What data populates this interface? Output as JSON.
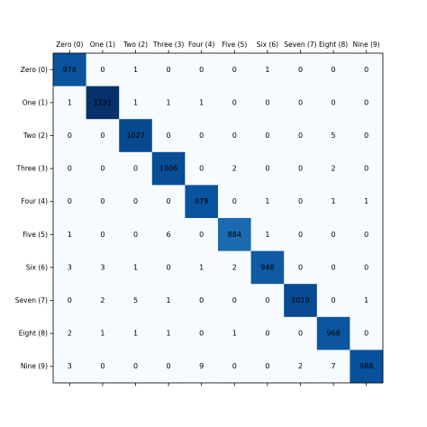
{
  "chart_data": {
    "type": "heatmap",
    "title": "",
    "xlabel": "",
    "ylabel": "",
    "x_tick_position": "top",
    "colormap": "Blues",
    "colors": {
      "low": "#f7fbff",
      "high": "#08306b"
    },
    "grid": false,
    "legend": "none",
    "categories": [
      "Zero (0)",
      "One (1)",
      "Two (2)",
      "Three (3)",
      "Four (4)",
      "Five (5)",
      "Six (6)",
      "Seven (7)",
      "Eight (8)",
      "Nine (9)"
    ],
    "values": [
      [
        978,
        0,
        1,
        0,
        0,
        0,
        1,
        0,
        0,
        0
      ],
      [
        1,
        1131,
        1,
        1,
        1,
        0,
        0,
        0,
        0,
        0
      ],
      [
        0,
        0,
        1027,
        0,
        0,
        0,
        0,
        0,
        5,
        0
      ],
      [
        0,
        0,
        0,
        1006,
        0,
        2,
        0,
        0,
        2,
        0
      ],
      [
        0,
        0,
        0,
        0,
        979,
        0,
        1,
        0,
        1,
        1
      ],
      [
        1,
        0,
        0,
        6,
        0,
        884,
        1,
        0,
        0,
        0
      ],
      [
        3,
        3,
        1,
        0,
        1,
        2,
        948,
        0,
        0,
        0
      ],
      [
        0,
        2,
        5,
        1,
        0,
        0,
        0,
        1019,
        0,
        1
      ],
      [
        2,
        1,
        1,
        1,
        0,
        1,
        0,
        0,
        968,
        0
      ],
      [
        3,
        0,
        0,
        0,
        9,
        0,
        0,
        2,
        7,
        988
      ]
    ]
  }
}
